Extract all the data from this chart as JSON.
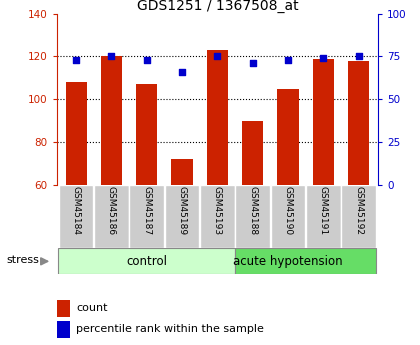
{
  "title": "GDS1251 / 1367508_at",
  "samples": [
    "GSM45184",
    "GSM45186",
    "GSM45187",
    "GSM45189",
    "GSM45193",
    "GSM45188",
    "GSM45190",
    "GSM45191",
    "GSM45192"
  ],
  "count_values": [
    108,
    120,
    107,
    72,
    123,
    90,
    105,
    119,
    118
  ],
  "percentile_values": [
    73,
    75,
    73,
    66,
    75,
    71,
    73,
    74,
    75
  ],
  "ylim_left": [
    60,
    140
  ],
  "ylim_right": [
    0,
    100
  ],
  "yticks_left": [
    60,
    80,
    100,
    120,
    140
  ],
  "yticks_right": [
    0,
    25,
    50,
    75,
    100
  ],
  "bar_color": "#cc2200",
  "scatter_color": "#0000cc",
  "ctrl_n": 5,
  "acute_n": 4,
  "control_label": "control",
  "acute_label": "acute hypotension",
  "stress_label": "stress",
  "legend_count": "count",
  "legend_percentile": "percentile rank within the sample",
  "control_bg": "#ccffcc",
  "acute_bg": "#66dd66",
  "tick_bg": "#cccccc",
  "bar_width": 0.6
}
